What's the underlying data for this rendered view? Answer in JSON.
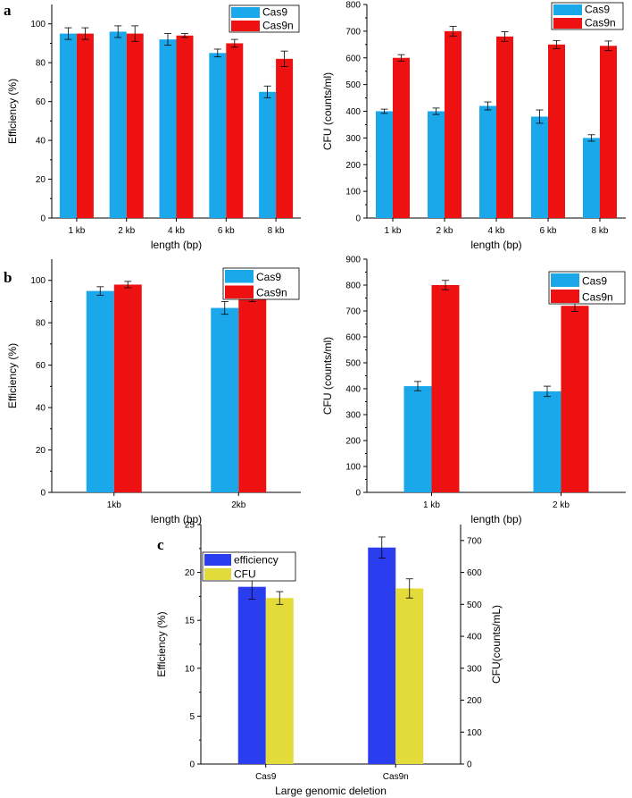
{
  "figure": {
    "panels": [
      "a",
      "b",
      "c"
    ]
  },
  "colors": {
    "cas9": "#1aa8ea",
    "cas9n": "#ee1111",
    "efficiency": "#2a3ef0",
    "cfu": "#e3db3a",
    "axis": "#000000"
  },
  "chart_data": [
    {
      "id": "a-left",
      "panel": "a",
      "type": "bar",
      "categories": [
        "1 kb",
        "2 kb",
        "4 kb",
        "6 kb",
        "8 kb"
      ],
      "series": [
        {
          "name": "Cas9",
          "values": [
            95,
            96,
            92,
            85,
            65
          ],
          "errors": [
            3,
            3,
            3,
            2,
            3
          ]
        },
        {
          "name": "Cas9n",
          "values": [
            95,
            95,
            94,
            90,
            82
          ],
          "errors": [
            3,
            4,
            1,
            2,
            4
          ]
        }
      ],
      "xlabel": "length (bp)",
      "ylabel": "Efficiency (%)",
      "ylim": [
        0,
        110
      ],
      "yticks": [
        0,
        20,
        40,
        60,
        80,
        100
      ],
      "legend": "top-right"
    },
    {
      "id": "a-right",
      "panel": "a",
      "type": "bar",
      "categories": [
        "1 kb",
        "2 kb",
        "4 kb",
        "6 kb",
        "8 kb"
      ],
      "series": [
        {
          "name": "Cas9",
          "values": [
            400,
            400,
            420,
            380,
            300
          ],
          "errors": [
            8,
            12,
            15,
            25,
            12
          ]
        },
        {
          "name": "Cas9n",
          "values": [
            600,
            700,
            680,
            650,
            645
          ],
          "errors": [
            12,
            18,
            18,
            15,
            18
          ]
        }
      ],
      "xlabel": "length (bp)",
      "ylabel": "CFU (counts/ml)",
      "ylim": [
        0,
        800
      ],
      "yticks": [
        0,
        100,
        200,
        300,
        400,
        500,
        600,
        700,
        800
      ],
      "legend": "top-right"
    },
    {
      "id": "b-left",
      "panel": "b",
      "type": "bar",
      "categories": [
        "1kb",
        "2kb"
      ],
      "series": [
        {
          "name": "Cas9",
          "values": [
            95,
            87
          ],
          "errors": [
            2,
            3
          ]
        },
        {
          "name": "Cas9n",
          "values": [
            98,
            92
          ],
          "errors": [
            1.5,
            2
          ]
        }
      ],
      "xlabel": "length (bp)",
      "ylabel": "Efficiency (%)",
      "ylim": [
        0,
        110
      ],
      "yticks": [
        0,
        20,
        40,
        60,
        80,
        100
      ],
      "legend": "top-right"
    },
    {
      "id": "b-right",
      "panel": "b",
      "type": "bar",
      "categories": [
        "1 kb",
        "2 kb"
      ],
      "series": [
        {
          "name": "Cas9",
          "values": [
            410,
            390
          ],
          "errors": [
            18,
            20
          ]
        },
        {
          "name": "Cas9n",
          "values": [
            800,
            720
          ],
          "errors": [
            18,
            22
          ]
        }
      ],
      "xlabel": "length (bp)",
      "ylabel": "CFU (counts/ml)",
      "ylim": [
        0,
        900
      ],
      "yticks": [
        0,
        100,
        200,
        300,
        400,
        500,
        600,
        700,
        800,
        900
      ],
      "legend": "top-right"
    },
    {
      "id": "c",
      "panel": "c",
      "type": "bar",
      "categories": [
        "Cas9",
        "Cas9n"
      ],
      "series": [
        {
          "name": "efficiency",
          "axis": "left",
          "values": [
            18.5,
            22.6
          ],
          "errors": [
            1.3,
            1.1
          ]
        },
        {
          "name": "CFU",
          "axis": "right",
          "values": [
            520,
            550
          ],
          "errors": [
            20,
            30
          ]
        }
      ],
      "xlabel": "Large genomic deletion",
      "ylabel": "Efficiency (%)",
      "ylabel_right": "CFU(counts/mL)",
      "ylim": [
        0,
        25
      ],
      "yticks": [
        0,
        5,
        10,
        15,
        20,
        25
      ],
      "ylim_right": [
        0,
        750
      ],
      "yticks_right": [
        0,
        100,
        200,
        300,
        400,
        500,
        600,
        700
      ],
      "legend": "top-left"
    }
  ]
}
